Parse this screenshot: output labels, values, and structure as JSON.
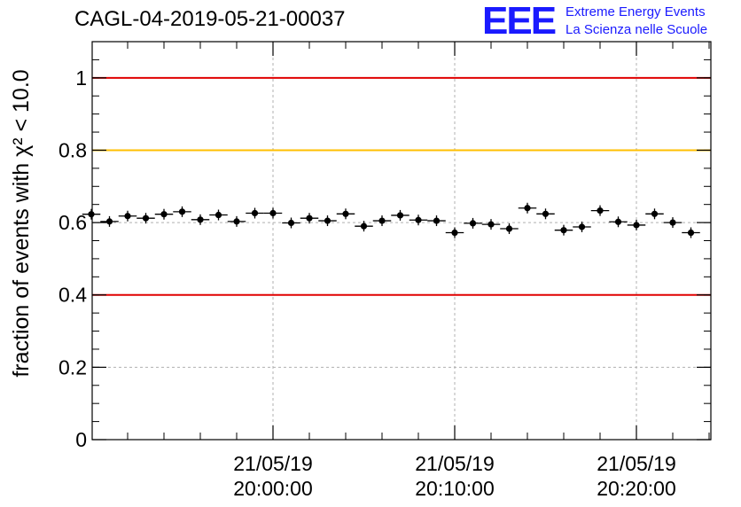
{
  "chart_data": {
    "type": "scatter",
    "title": "CAGL-04-2019-05-21-00037",
    "ylabel": "fraction of events with χ² < 10.0",
    "xlabel": "",
    "ylim": [
      0,
      1.1
    ],
    "yticks": [
      "0",
      "0.2",
      "0.4",
      "0.6",
      "0.8",
      "1"
    ],
    "xticks": [
      {
        "date": "21/05/19",
        "time": "20:00:00"
      },
      {
        "date": "21/05/19",
        "time": "20:10:00"
      },
      {
        "date": "21/05/19",
        "time": "20:20:00"
      }
    ],
    "grid": true,
    "reference_lines": [
      {
        "y": 1.0,
        "color": "#e00000"
      },
      {
        "y": 0.8,
        "color": "#ffbf00"
      },
      {
        "y": 0.4,
        "color": "#e00000"
      }
    ],
    "series": [
      {
        "x": [
          "19:50:00",
          "19:51:00",
          "19:52:00",
          "19:53:00",
          "19:54:00",
          "19:55:00",
          "19:56:00",
          "19:57:00",
          "19:58:00",
          "19:59:00",
          "20:00:00",
          "20:01:00",
          "20:02:00",
          "20:03:00",
          "20:04:00",
          "20:05:00",
          "20:06:00",
          "20:07:00",
          "20:08:00",
          "20:09:00",
          "20:10:00",
          "20:11:00",
          "20:12:00",
          "20:13:00",
          "20:14:00",
          "20:15:00",
          "20:16:00",
          "20:17:00",
          "20:18:00",
          "20:19:00",
          "20:20:00",
          "20:21:00",
          "20:22:00",
          "20:23:00"
        ],
        "values": [
          0.623,
          0.603,
          0.618,
          0.612,
          0.623,
          0.63,
          0.608,
          0.621,
          0.603,
          0.626,
          0.626,
          0.599,
          0.612,
          0.605,
          0.624,
          0.59,
          0.605,
          0.62,
          0.607,
          0.605,
          0.572,
          0.598,
          0.595,
          0.583,
          0.64,
          0.624,
          0.579,
          0.588,
          0.633,
          0.602,
          0.593,
          0.624,
          0.6,
          0.572
        ]
      }
    ]
  },
  "logo": {
    "mark": "EEE",
    "line1": "Extreme Energy Events",
    "line2": "La Scienza nelle Scuole"
  }
}
